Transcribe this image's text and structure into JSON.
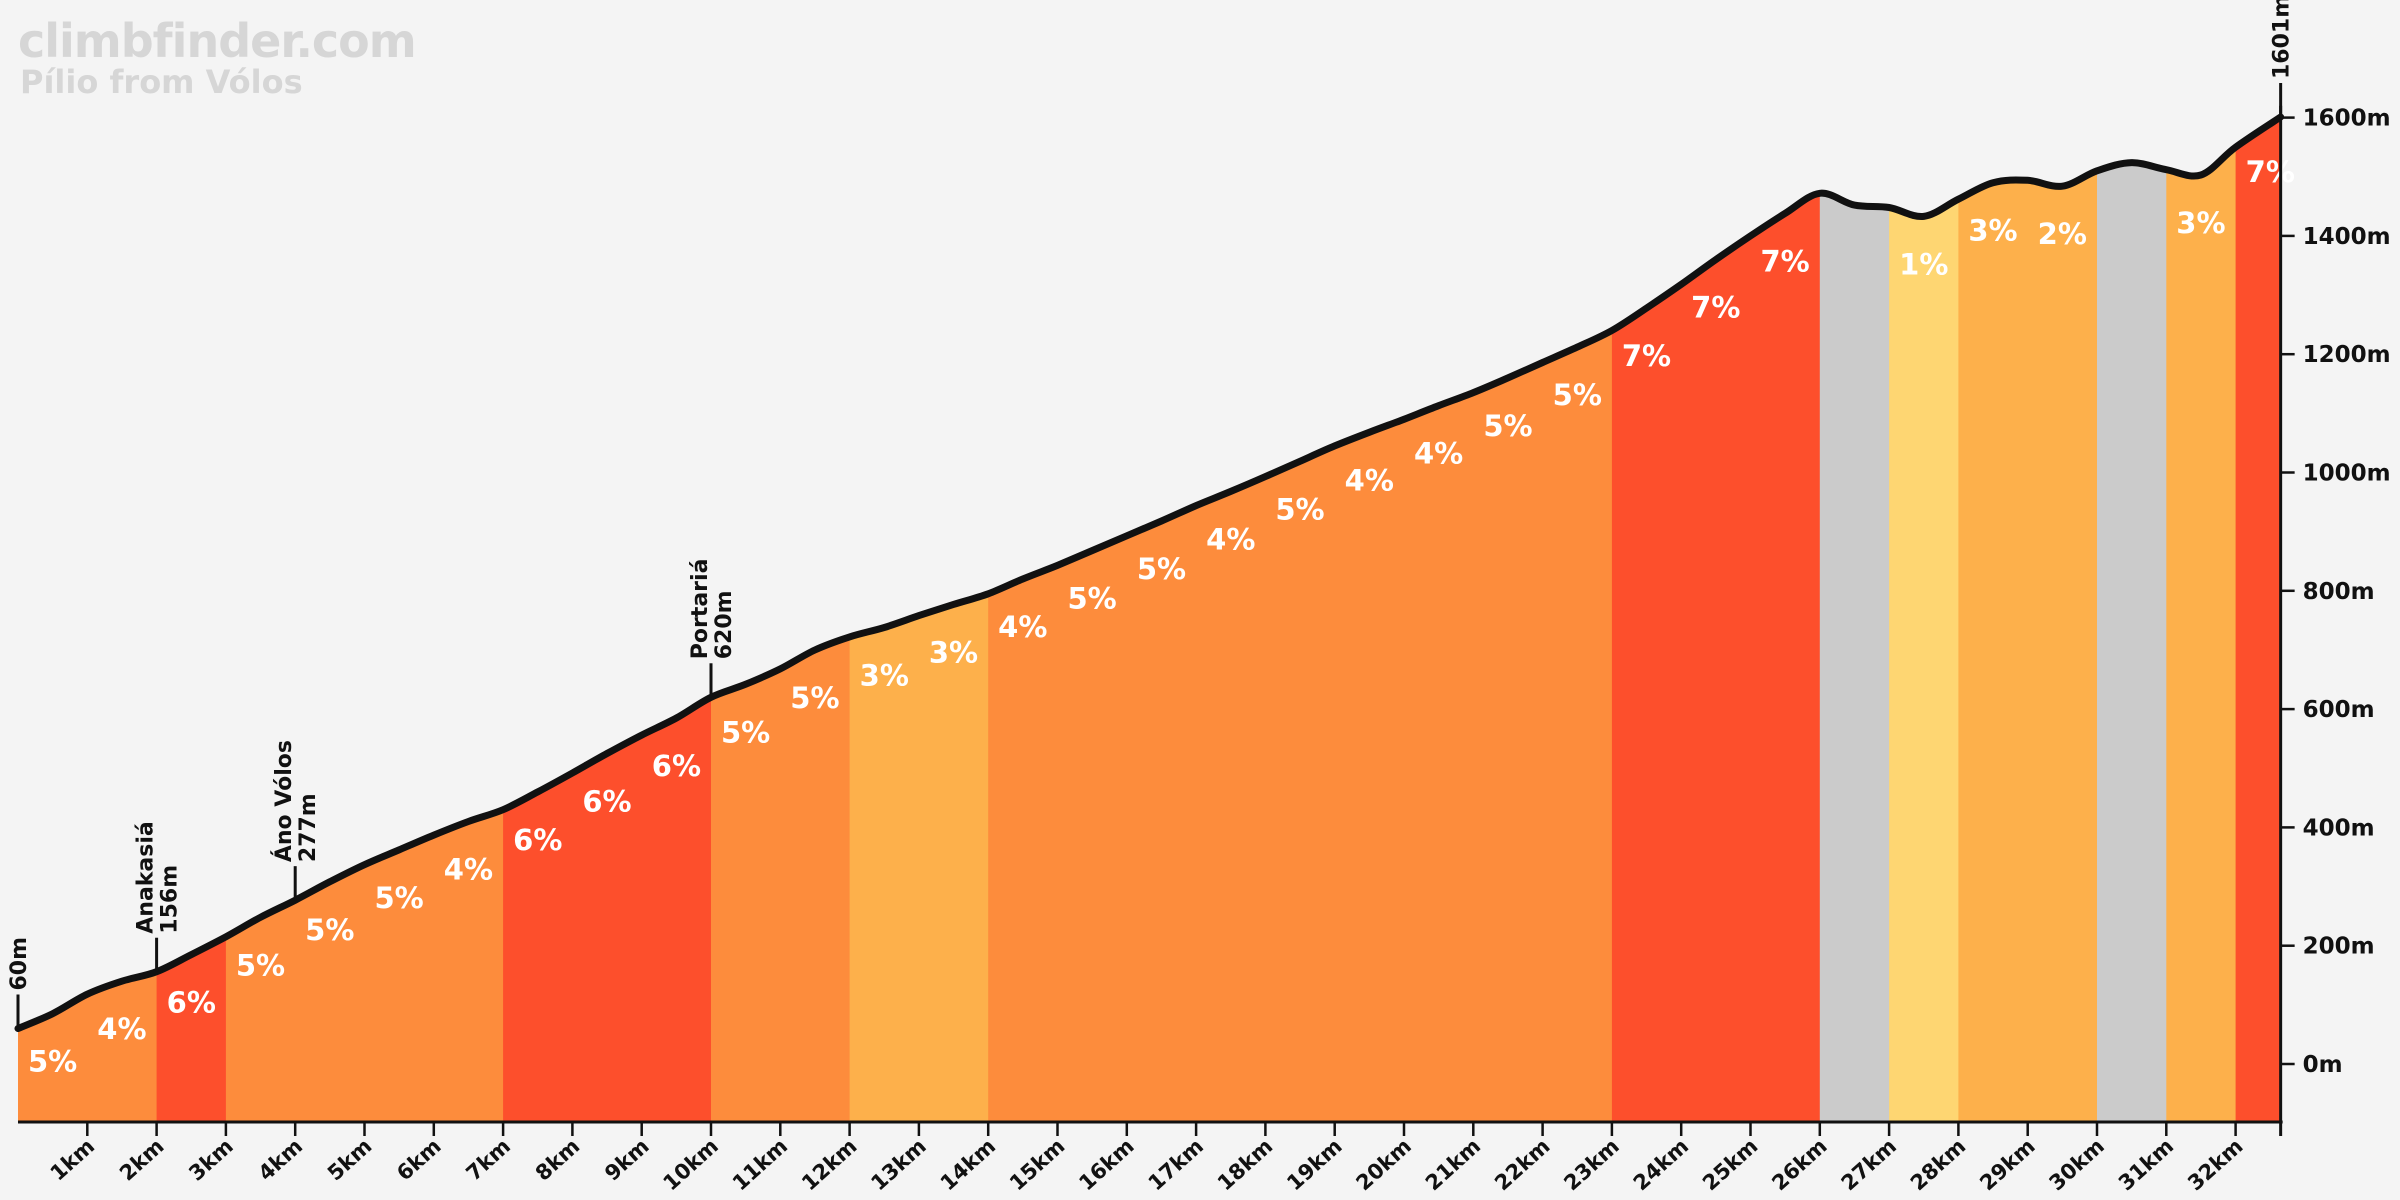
{
  "header": {
    "site": "climbfinder.com",
    "climb": "Pílio from Vólos"
  },
  "colors": {
    "background": "#f4f4f4",
    "profile_line": "#111111",
    "grade_colors": {
      "flat": "#cbcbcb",
      "1": "#fed672",
      "2": "#fdb04b",
      "3": "#fdb04b",
      "4": "#fd8c3c",
      "5": "#fd8c3c",
      "6": "#fd4f2c",
      "7": "#fd4f2c"
    }
  },
  "chart_data": {
    "type": "area",
    "title": "Pílio from Vólos",
    "x_unit": "km",
    "y_unit": "m",
    "xlim": [
      0,
      32.65
    ],
    "ylim": [
      -100,
      1620
    ],
    "y_ticks": [
      0,
      200,
      400,
      600,
      800,
      1000,
      1200,
      1400,
      1600
    ],
    "y_tick_labels": [
      "0m",
      "200m",
      "400m",
      "600m",
      "800m",
      "1000m",
      "1200m",
      "1400m",
      "1600m"
    ],
    "x_ticks": [
      1,
      2,
      3,
      4,
      5,
      6,
      7,
      8,
      9,
      10,
      11,
      12,
      13,
      14,
      15,
      16,
      17,
      18,
      19,
      20,
      21,
      22,
      23,
      24,
      25,
      26,
      27,
      28,
      29,
      30,
      31,
      32
    ],
    "x_tick_labels": [
      "1km",
      "2km",
      "3km",
      "4km",
      "5km",
      "6km",
      "7km",
      "8km",
      "9km",
      "10km",
      "11km",
      "12km",
      "13km",
      "14km",
      "15km",
      "16km",
      "17km",
      "18km",
      "19km",
      "20km",
      "21km",
      "22km",
      "23km",
      "24km",
      "25km",
      "26km",
      "27km",
      "28km",
      "29km",
      "30km",
      "31km",
      "32km"
    ],
    "segments": [
      {
        "start": 0,
        "end": 2,
        "grade": "5"
      },
      {
        "start": 2,
        "end": 3,
        "grade": "6"
      },
      {
        "start": 3,
        "end": 7,
        "grade": "5"
      },
      {
        "start": 7,
        "end": 10,
        "grade": "6"
      },
      {
        "start": 10,
        "end": 12,
        "grade": "5"
      },
      {
        "start": 12,
        "end": 14,
        "grade": "3"
      },
      {
        "start": 14,
        "end": 23,
        "grade": "4"
      },
      {
        "start": 23,
        "end": 26,
        "grade": "7"
      },
      {
        "start": 26,
        "end": 27,
        "grade": "flat"
      },
      {
        "start": 27,
        "end": 28,
        "grade": "1"
      },
      {
        "start": 28,
        "end": 30,
        "grade": "3"
      },
      {
        "start": 30,
        "end": 31,
        "grade": "flat"
      },
      {
        "start": 31,
        "end": 32,
        "grade": "3"
      },
      {
        "start": 32,
        "end": 32.65,
        "grade": "7"
      }
    ],
    "grade_labels": [
      {
        "km": 0.5,
        "text": "5%"
      },
      {
        "km": 1.5,
        "text": "4%"
      },
      {
        "km": 2.5,
        "text": "6%"
      },
      {
        "km": 3.5,
        "text": "5%"
      },
      {
        "km": 4.5,
        "text": "5%"
      },
      {
        "km": 5.5,
        "text": "5%"
      },
      {
        "km": 6.5,
        "text": "4%"
      },
      {
        "km": 7.5,
        "text": "6%"
      },
      {
        "km": 8.5,
        "text": "6%"
      },
      {
        "km": 9.5,
        "text": "6%"
      },
      {
        "km": 10.5,
        "text": "5%"
      },
      {
        "km": 11.5,
        "text": "5%"
      },
      {
        "km": 12.5,
        "text": "3%"
      },
      {
        "km": 13.5,
        "text": "3%"
      },
      {
        "km": 14.5,
        "text": "4%"
      },
      {
        "km": 15.5,
        "text": "5%"
      },
      {
        "km": 16.5,
        "text": "5%"
      },
      {
        "km": 17.5,
        "text": "4%"
      },
      {
        "km": 18.5,
        "text": "5%"
      },
      {
        "km": 19.5,
        "text": "4%"
      },
      {
        "km": 20.5,
        "text": "4%"
      },
      {
        "km": 21.5,
        "text": "5%"
      },
      {
        "km": 22.5,
        "text": "5%"
      },
      {
        "km": 23.5,
        "text": "7%"
      },
      {
        "km": 24.5,
        "text": "7%"
      },
      {
        "km": 25.5,
        "text": "7%"
      },
      {
        "km": 27.5,
        "text": "1%"
      },
      {
        "km": 28.5,
        "text": "3%"
      },
      {
        "km": 29.5,
        "text": "2%"
      },
      {
        "km": 31.5,
        "text": "3%"
      },
      {
        "km": 32.5,
        "text": "7%"
      }
    ],
    "profile": [
      {
        "km": 0,
        "alt": 60
      },
      {
        "km": 0.5,
        "alt": 85
      },
      {
        "km": 1,
        "alt": 118
      },
      {
        "km": 1.5,
        "alt": 140
      },
      {
        "km": 2,
        "alt": 156
      },
      {
        "km": 2.5,
        "alt": 185
      },
      {
        "km": 3,
        "alt": 215
      },
      {
        "km": 3.5,
        "alt": 248
      },
      {
        "km": 4,
        "alt": 277
      },
      {
        "km": 4.5,
        "alt": 308
      },
      {
        "km": 5,
        "alt": 337
      },
      {
        "km": 5.5,
        "alt": 362
      },
      {
        "km": 6,
        "alt": 387
      },
      {
        "km": 6.5,
        "alt": 410
      },
      {
        "km": 7,
        "alt": 430
      },
      {
        "km": 7.5,
        "alt": 460
      },
      {
        "km": 8,
        "alt": 492
      },
      {
        "km": 8.5,
        "alt": 525
      },
      {
        "km": 9,
        "alt": 556
      },
      {
        "km": 9.5,
        "alt": 585
      },
      {
        "km": 10,
        "alt": 620
      },
      {
        "km": 10.5,
        "alt": 642
      },
      {
        "km": 11,
        "alt": 668
      },
      {
        "km": 11.5,
        "alt": 700
      },
      {
        "km": 12,
        "alt": 722
      },
      {
        "km": 12.5,
        "alt": 738
      },
      {
        "km": 13,
        "alt": 758
      },
      {
        "km": 13.5,
        "alt": 777
      },
      {
        "km": 14,
        "alt": 795
      },
      {
        "km": 14.5,
        "alt": 820
      },
      {
        "km": 15,
        "alt": 843
      },
      {
        "km": 15.5,
        "alt": 868
      },
      {
        "km": 16,
        "alt": 893
      },
      {
        "km": 16.5,
        "alt": 918
      },
      {
        "km": 17,
        "alt": 944
      },
      {
        "km": 17.5,
        "alt": 968
      },
      {
        "km": 18,
        "alt": 993
      },
      {
        "km": 18.5,
        "alt": 1019
      },
      {
        "km": 19,
        "alt": 1045
      },
      {
        "km": 19.5,
        "alt": 1068
      },
      {
        "km": 20,
        "alt": 1090
      },
      {
        "km": 20.5,
        "alt": 1113
      },
      {
        "km": 21,
        "alt": 1135
      },
      {
        "km": 21.5,
        "alt": 1160
      },
      {
        "km": 22,
        "alt": 1186
      },
      {
        "km": 22.5,
        "alt": 1212
      },
      {
        "km": 23,
        "alt": 1240
      },
      {
        "km": 23.5,
        "alt": 1278
      },
      {
        "km": 24,
        "alt": 1318
      },
      {
        "km": 24.5,
        "alt": 1360
      },
      {
        "km": 25,
        "alt": 1400
      },
      {
        "km": 25.5,
        "alt": 1438
      },
      {
        "km": 26,
        "alt": 1472
      },
      {
        "km": 26.5,
        "alt": 1452
      },
      {
        "km": 27,
        "alt": 1448
      },
      {
        "km": 27.5,
        "alt": 1433
      },
      {
        "km": 28,
        "alt": 1462
      },
      {
        "km": 28.5,
        "alt": 1490
      },
      {
        "km": 29,
        "alt": 1494
      },
      {
        "km": 29.5,
        "alt": 1484
      },
      {
        "km": 30,
        "alt": 1510
      },
      {
        "km": 30.5,
        "alt": 1524
      },
      {
        "km": 31,
        "alt": 1512
      },
      {
        "km": 31.5,
        "alt": 1503
      },
      {
        "km": 32,
        "alt": 1550
      },
      {
        "km": 32.65,
        "alt": 1601
      }
    ],
    "markers": [
      {
        "km": 0,
        "alt": 60,
        "lines": [
          "60m"
        ]
      },
      {
        "km": 2,
        "alt": 156,
        "lines": [
          "Anakasiá",
          "156m"
        ]
      },
      {
        "km": 4,
        "alt": 277,
        "lines": [
          "Áno Vólos",
          "277m"
        ]
      },
      {
        "km": 10,
        "alt": 620,
        "lines": [
          "Portariá",
          "620m"
        ]
      },
      {
        "km": 32.65,
        "alt": 1601,
        "lines": [
          "1601m"
        ]
      }
    ]
  }
}
